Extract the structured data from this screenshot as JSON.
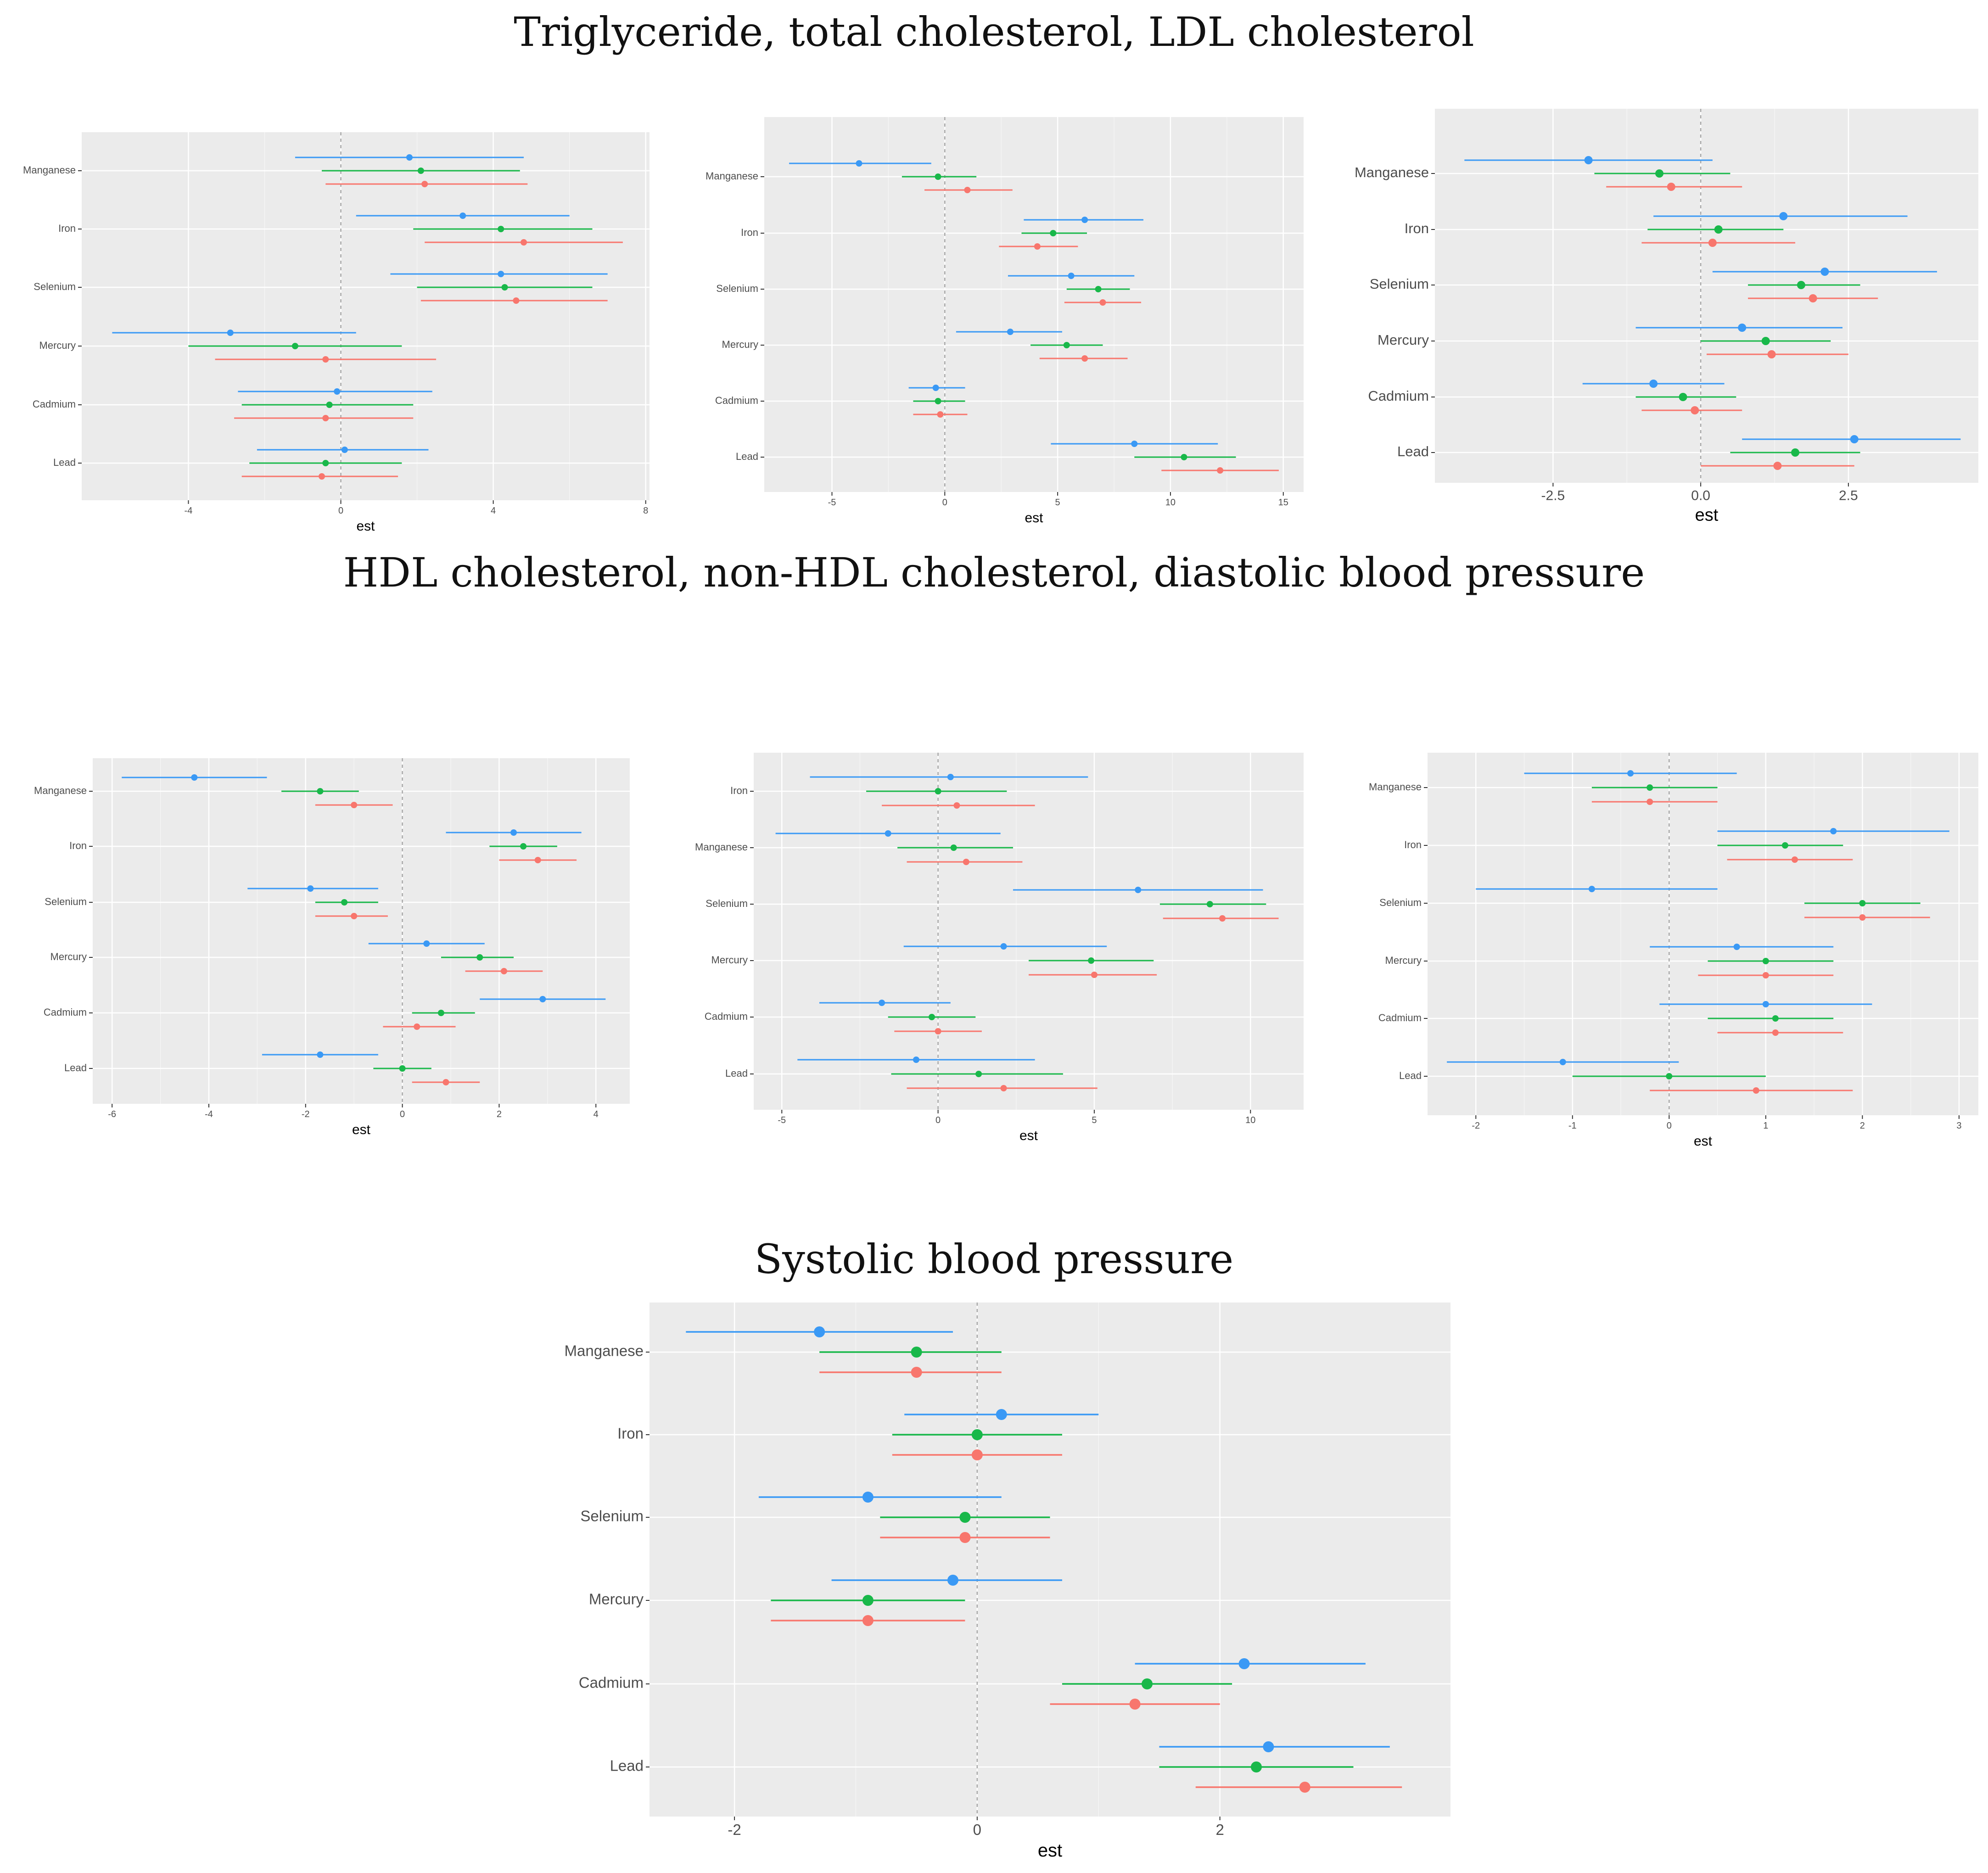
{
  "titles": {
    "row1": "Triglyceride, total cholesterol, LDL cholesterol",
    "row2": "HDL cholesterol, non-HDL cholesterol, diastolic blood pressure",
    "row3": "Systolic blood pressure"
  },
  "colors": {
    "blue": "#3a99f5",
    "green": "#19b84a",
    "red": "#f8766d",
    "panel": "#ebebeb",
    "grid": "#ffffff"
  },
  "chart_data": [
    {
      "id": "p1",
      "type": "forest",
      "title": "",
      "xlabel": "est",
      "xlim": [
        -6.8,
        8.1
      ],
      "xticks": [
        -4,
        0,
        4,
        8
      ],
      "xtick_labels": [
        "-4",
        "0",
        "4",
        "8"
      ],
      "categories": [
        "Manganese",
        "Iron",
        "Selenium",
        "Mercury",
        "Cadmium",
        "Lead"
      ],
      "series": [
        {
          "color": "blue",
          "est": [
            1.8,
            3.2,
            4.2,
            -2.9,
            -0.1,
            0.1
          ],
          "lo": [
            -1.2,
            0.4,
            1.3,
            -6.0,
            -2.7,
            -2.2
          ],
          "hi": [
            4.8,
            6.0,
            7.0,
            0.4,
            2.4,
            2.3
          ]
        },
        {
          "color": "green",
          "est": [
            2.1,
            4.2,
            4.3,
            -1.2,
            -0.3,
            -0.4
          ],
          "lo": [
            -0.5,
            1.9,
            2.0,
            -4.0,
            -2.6,
            -2.4
          ],
          "hi": [
            4.7,
            6.6,
            6.6,
            1.6,
            1.9,
            1.6
          ]
        },
        {
          "color": "red",
          "est": [
            2.2,
            4.8,
            4.6,
            -0.4,
            -0.4,
            -0.5
          ],
          "lo": [
            -0.4,
            2.2,
            2.1,
            -3.3,
            -2.8,
            -2.6
          ],
          "hi": [
            4.9,
            7.4,
            7.0,
            2.5,
            1.9,
            1.5
          ]
        }
      ]
    },
    {
      "id": "p2",
      "type": "forest",
      "title": "",
      "xlabel": "est",
      "xlim": [
        -8.0,
        15.9
      ],
      "xticks": [
        -5,
        0,
        5,
        10,
        15
      ],
      "xtick_labels": [
        "-5",
        "0",
        "5",
        "10",
        "15"
      ],
      "categories": [
        "Manganese",
        "Iron",
        "Selenium",
        "Mercury",
        "Cadmium",
        "Lead"
      ],
      "series": [
        {
          "color": "blue",
          "est": [
            -3.8,
            6.2,
            5.6,
            2.9,
            -0.4,
            8.4
          ],
          "lo": [
            -6.9,
            3.5,
            2.8,
            0.5,
            -1.6,
            4.7
          ],
          "hi": [
            -0.6,
            8.8,
            8.4,
            5.2,
            0.9,
            12.1
          ]
        },
        {
          "color": "green",
          "est": [
            -0.3,
            4.8,
            6.8,
            5.4,
            -0.3,
            10.6
          ],
          "lo": [
            -1.9,
            3.4,
            5.4,
            3.8,
            -1.4,
            8.4
          ],
          "hi": [
            1.4,
            6.3,
            8.2,
            7.0,
            0.9,
            12.9
          ]
        },
        {
          "color": "red",
          "est": [
            1.0,
            4.1,
            7.0,
            6.2,
            -0.2,
            12.2
          ],
          "lo": [
            -0.9,
            2.4,
            5.3,
            4.2,
            -1.4,
            9.6
          ],
          "hi": [
            3.0,
            5.9,
            8.7,
            8.1,
            1.0,
            14.8
          ]
        }
      ]
    },
    {
      "id": "p3",
      "type": "forest",
      "title": "",
      "xlabel": "est",
      "xlim": [
        -4.5,
        4.7
      ],
      "xticks": [
        -2.5,
        0,
        2.5
      ],
      "xtick_labels": [
        "-2.5",
        "0.0",
        "2.5"
      ],
      "categories": [
        "Manganese",
        "Iron",
        "Selenium",
        "Mercury",
        "Cadmium",
        "Lead"
      ],
      "series": [
        {
          "color": "blue",
          "est": [
            -1.9,
            1.4,
            2.1,
            0.7,
            -0.8,
            2.6
          ],
          "lo": [
            -4.0,
            -0.8,
            0.2,
            -1.1,
            -2.0,
            0.7
          ],
          "hi": [
            0.2,
            3.5,
            4.0,
            2.4,
            0.4,
            4.4
          ]
        },
        {
          "color": "green",
          "est": [
            -0.7,
            0.3,
            1.7,
            1.1,
            -0.3,
            1.6
          ],
          "lo": [
            -1.8,
            -0.9,
            0.8,
            0.0,
            -1.1,
            0.5
          ],
          "hi": [
            0.5,
            1.4,
            2.7,
            2.2,
            0.6,
            2.7
          ]
        },
        {
          "color": "red",
          "est": [
            -0.5,
            0.2,
            1.9,
            1.2,
            -0.1,
            1.3
          ],
          "lo": [
            -1.6,
            -1.0,
            0.8,
            0.1,
            -1.0,
            0.0
          ],
          "hi": [
            0.7,
            1.6,
            3.0,
            2.5,
            0.7,
            2.6
          ]
        }
      ]
    },
    {
      "id": "p4",
      "type": "forest",
      "title": "",
      "xlabel": "est",
      "xlim": [
        -6.4,
        4.7
      ],
      "xticks": [
        -6,
        -4,
        -2,
        0,
        2,
        4
      ],
      "xtick_labels": [
        "-6",
        "-4",
        "-2",
        "0",
        "2",
        "4"
      ],
      "categories": [
        "Manganese",
        "Iron",
        "Selenium",
        "Mercury",
        "Cadmium",
        "Lead"
      ],
      "series": [
        {
          "color": "blue",
          "est": [
            -4.3,
            2.3,
            -1.9,
            0.5,
            2.9,
            -1.7
          ],
          "lo": [
            -5.8,
            0.9,
            -3.2,
            -0.7,
            1.6,
            -2.9
          ],
          "hi": [
            -2.8,
            3.7,
            -0.5,
            1.7,
            4.2,
            -0.5
          ]
        },
        {
          "color": "green",
          "est": [
            -1.7,
            2.5,
            -1.2,
            1.6,
            0.8,
            0.0
          ],
          "lo": [
            -2.5,
            1.8,
            -1.8,
            0.8,
            0.2,
            -0.6
          ],
          "hi": [
            -0.9,
            3.2,
            -0.5,
            2.3,
            1.5,
            0.6
          ]
        },
        {
          "color": "red",
          "est": [
            -1.0,
            2.8,
            -1.0,
            2.1,
            0.3,
            0.9
          ],
          "lo": [
            -1.8,
            2.0,
            -1.8,
            1.3,
            -0.4,
            0.2
          ],
          "hi": [
            -0.2,
            3.6,
            -0.3,
            2.9,
            1.1,
            1.6
          ]
        }
      ]
    },
    {
      "id": "p5",
      "type": "forest",
      "title": "",
      "xlabel": "est",
      "xlim": [
        -5.9,
        11.7
      ],
      "xticks": [
        -5,
        0,
        5,
        10
      ],
      "xtick_labels": [
        "-5",
        "0",
        "5",
        "10"
      ],
      "categories": [
        "Iron",
        "Manganese",
        "Selenium",
        "Mercury",
        "Cadmium",
        "Lead"
      ],
      "series": [
        {
          "color": "blue",
          "est": [
            0.4,
            -1.6,
            6.4,
            2.1,
            -1.8,
            -0.7
          ],
          "lo": [
            -4.1,
            -5.2,
            2.4,
            -1.1,
            -3.8,
            -4.5
          ],
          "hi": [
            4.8,
            2.0,
            10.4,
            5.4,
            0.4,
            3.1
          ]
        },
        {
          "color": "green",
          "est": [
            0.0,
            0.5,
            8.7,
            4.9,
            -0.2,
            1.3
          ],
          "lo": [
            -2.3,
            -1.3,
            7.1,
            2.9,
            -1.6,
            -1.5
          ],
          "hi": [
            2.2,
            2.4,
            10.5,
            6.9,
            1.2,
            4.0
          ]
        },
        {
          "color": "red",
          "est": [
            0.6,
            0.9,
            9.1,
            5.0,
            0.0,
            2.1
          ],
          "lo": [
            -1.8,
            -1.0,
            7.2,
            2.9,
            -1.4,
            -1.0
          ],
          "hi": [
            3.1,
            2.7,
            10.9,
            7.0,
            1.4,
            5.1
          ]
        }
      ]
    },
    {
      "id": "p6",
      "type": "forest",
      "title": "",
      "xlabel": "est",
      "xlim": [
        -2.5,
        3.2
      ],
      "xticks": [
        -2,
        -1,
        0,
        1,
        2,
        3
      ],
      "xtick_labels": [
        "-2",
        "-1",
        "0",
        "1",
        "2",
        "3"
      ],
      "categories": [
        "Manganese",
        "Iron",
        "Selenium",
        "Mercury",
        "Cadmium",
        "Lead"
      ],
      "series": [
        {
          "color": "blue",
          "est": [
            -0.4,
            1.7,
            -0.8,
            0.7,
            1.0,
            -1.1
          ],
          "lo": [
            -1.5,
            0.5,
            -2.0,
            -0.2,
            -0.1,
            -2.3
          ],
          "hi": [
            0.7,
            2.9,
            0.5,
            1.7,
            2.1,
            0.1
          ]
        },
        {
          "color": "green",
          "est": [
            -0.2,
            1.2,
            2.0,
            1.0,
            1.1,
            0.0
          ],
          "lo": [
            -0.8,
            0.5,
            1.4,
            0.4,
            0.4,
            -1.0
          ],
          "hi": [
            0.5,
            1.8,
            2.6,
            1.7,
            1.7,
            1.0
          ]
        },
        {
          "color": "red",
          "est": [
            -0.2,
            1.3,
            2.0,
            1.0,
            1.1,
            0.9
          ],
          "lo": [
            -0.8,
            0.6,
            1.4,
            0.3,
            0.5,
            -0.2
          ],
          "hi": [
            0.5,
            1.9,
            2.7,
            1.7,
            1.8,
            1.9
          ]
        }
      ]
    },
    {
      "id": "p7",
      "type": "forest",
      "title": "",
      "xlabel": "est",
      "xlim": [
        -2.7,
        3.9
      ],
      "xticks": [
        -2,
        0,
        2
      ],
      "xtick_labels": [
        "-2",
        "0",
        "2"
      ],
      "categories": [
        "Manganese",
        "Iron",
        "Selenium",
        "Mercury",
        "Cadmium",
        "Lead"
      ],
      "series": [
        {
          "color": "blue",
          "est": [
            -1.3,
            0.2,
            -0.9,
            -0.2,
            2.2,
            2.4
          ],
          "lo": [
            -2.4,
            -0.6,
            -1.8,
            -1.2,
            1.3,
            1.5
          ],
          "hi": [
            -0.2,
            1.0,
            0.2,
            0.7,
            3.2,
            3.4
          ]
        },
        {
          "color": "green",
          "est": [
            -0.5,
            0.0,
            -0.1,
            -0.9,
            1.4,
            2.3
          ],
          "lo": [
            -1.3,
            -0.7,
            -0.8,
            -1.7,
            0.7,
            1.5
          ],
          "hi": [
            0.2,
            0.7,
            0.6,
            -0.1,
            2.1,
            3.1
          ]
        },
        {
          "color": "red",
          "est": [
            -0.5,
            0.0,
            -0.1,
            -0.9,
            1.3,
            2.7
          ],
          "lo": [
            -1.3,
            -0.7,
            -0.8,
            -1.7,
            0.6,
            1.8
          ],
          "hi": [
            0.2,
            0.7,
            0.6,
            -0.1,
            2.0,
            3.5
          ]
        }
      ]
    }
  ]
}
